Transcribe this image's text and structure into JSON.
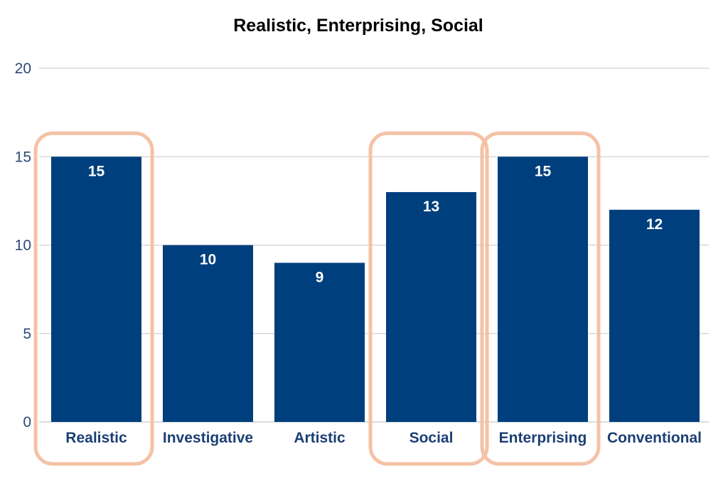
{
  "chart_data": {
    "type": "bar",
    "title": "Realistic, Enterprising, Social",
    "categories": [
      "Realistic",
      "Investigative",
      "Artistic",
      "Social",
      "Enterprising",
      "Conventional"
    ],
    "values": [
      15,
      10,
      9,
      13,
      15,
      12
    ],
    "ylim": [
      0,
      20
    ],
    "yticks": [
      0,
      5,
      10,
      15,
      20
    ],
    "highlighted": [
      "Realistic",
      "Social",
      "Enterprising"
    ],
    "grid": true,
    "bar_color": "#003f7d",
    "highlight_color": "#f4c2a6",
    "xlabel": "",
    "ylabel": ""
  }
}
